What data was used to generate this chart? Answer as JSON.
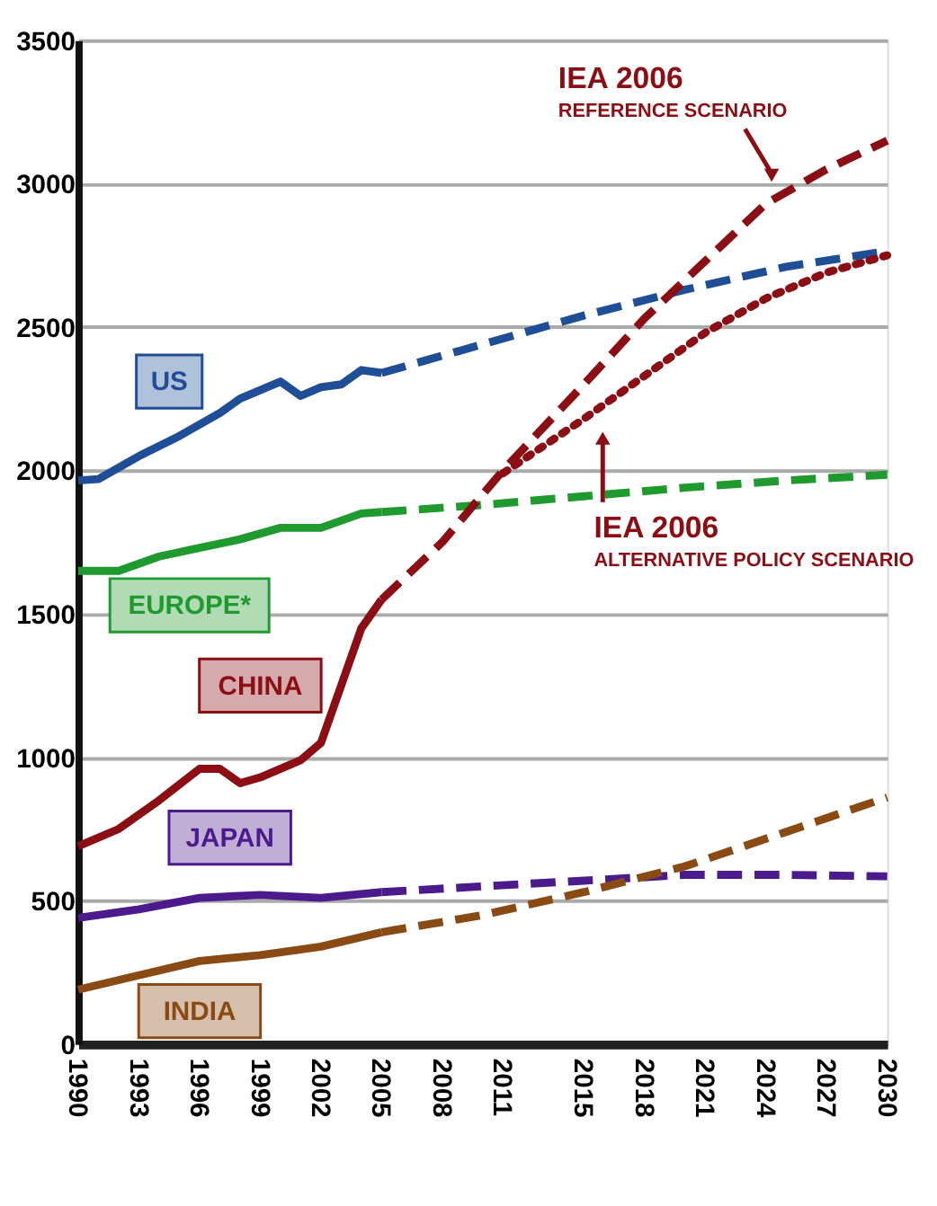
{
  "chart_data": {
    "type": "line",
    "xlim": [
      1990,
      2030
    ],
    "xticks": [
      1990,
      1993,
      1996,
      1999,
      2002,
      2005,
      2008,
      2011,
      2015,
      2018,
      2021,
      2024,
      2027,
      2030
    ],
    "ylim": [
      0,
      3500
    ],
    "yticks": [
      0,
      500,
      1000,
      1500,
      2000,
      2500,
      3000,
      3500
    ],
    "grid": "y",
    "series": [
      {
        "name": "US",
        "color": "#1f4e96",
        "line_style": "solid",
        "x": [
          1990,
          1991,
          1993,
          1995,
          1997,
          1998,
          2000,
          2001,
          2002,
          2003,
          2004,
          2005
        ],
        "values": [
          1965,
          1970,
          2050,
          2120,
          2200,
          2250,
          2310,
          2260,
          2290,
          2300,
          2350,
          2340
        ]
      },
      {
        "name": "EUROPE*",
        "color": "#1f9a2e",
        "line_style": "solid",
        "x": [
          1990,
          1992,
          1994,
          1996,
          1998,
          2000,
          2002,
          2004,
          2005
        ],
        "values": [
          1650,
          1650,
          1700,
          1730,
          1760,
          1800,
          1800,
          1850,
          1855
        ]
      },
      {
        "name": "CHINA",
        "color": "#8b0e14",
        "line_style": "solid",
        "x": [
          1990,
          1992,
          1994,
          1996,
          1997,
          1998,
          1999,
          2001,
          2002,
          2003,
          2004,
          2005
        ],
        "values": [
          690,
          750,
          850,
          960,
          960,
          910,
          930,
          990,
          1050,
          1250,
          1450,
          1550
        ]
      },
      {
        "name": "JAPAN",
        "color": "#4b1a8c",
        "line_style": "solid",
        "x": [
          1990,
          1993,
          1996,
          1999,
          2002,
          2005
        ],
        "values": [
          440,
          470,
          510,
          520,
          510,
          530
        ]
      },
      {
        "name": "INDIA",
        "color": "#8a4a14",
        "line_style": "solid",
        "x": [
          1990,
          1993,
          1996,
          1999,
          2002,
          2005
        ],
        "values": [
          190,
          240,
          290,
          310,
          340,
          390
        ]
      },
      {
        "color": "#1f4e96",
        "line_style": "dashed",
        "x": [
          2005,
          2010,
          2015,
          2020,
          2025,
          2030
        ],
        "values": [
          2340,
          2440,
          2540,
          2630,
          2710,
          2765
        ]
      },
      {
        "color": "#1f9a2e",
        "line_style": "dashed",
        "x": [
          2005,
          2010,
          2015,
          2020,
          2025,
          2030
        ],
        "values": [
          1855,
          1880,
          1910,
          1940,
          1965,
          1985
        ]
      },
      {
        "color": "#8b0e14",
        "line_style": "dashed",
        "x": [
          2005,
          2008,
          2011,
          2015,
          2018,
          2021,
          2024,
          2027,
          2030
        ],
        "values": [
          1550,
          1750,
          2000,
          2300,
          2530,
          2730,
          2930,
          3050,
          3150
        ]
      },
      {
        "color": "#8b0e14",
        "line_style": "dotted",
        "x": [
          2011,
          2015,
          2018,
          2021,
          2024,
          2027,
          2030
        ],
        "values": [
          1990,
          2180,
          2330,
          2480,
          2600,
          2690,
          2750
        ]
      },
      {
        "color": "#4b1a8c",
        "line_style": "dashed",
        "x": [
          2005,
          2010,
          2015,
          2020,
          2025,
          2030
        ],
        "values": [
          530,
          550,
          570,
          590,
          590,
          585
        ]
      },
      {
        "color": "#8a4a14",
        "line_style": "dashed",
        "x": [
          2005,
          2010,
          2015,
          2020,
          2025,
          2030
        ],
        "values": [
          390,
          450,
          530,
          620,
          740,
          860
        ]
      }
    ],
    "annotations": [
      "IEA 2006",
      "REFERENCE SCENARIO",
      "IEA 2006",
      "ALTERNATIVE POLICY SCENARIO"
    ]
  }
}
